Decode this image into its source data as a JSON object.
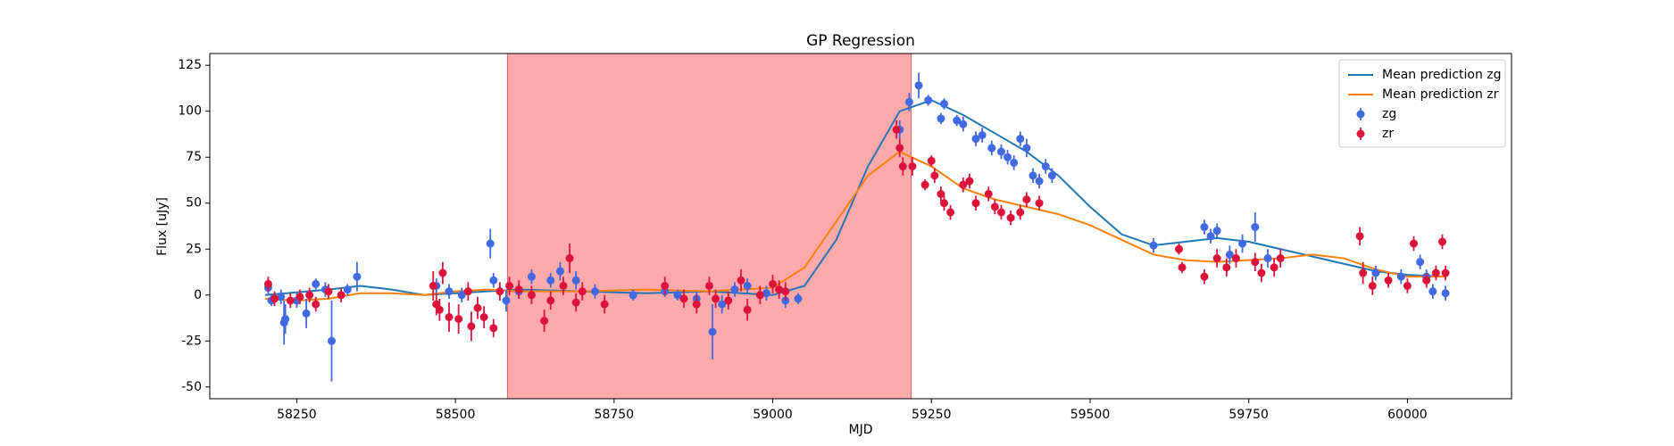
{
  "chart_data": {
    "type": "scatter",
    "title": "GP Regression",
    "x_label": "MJD",
    "y_label": "Flux [uJy]",
    "xlim": [
      58113,
      60164
    ],
    "ylim": [
      -56.4,
      131.4
    ],
    "xticks": [
      58250,
      58500,
      58750,
      59000,
      59250,
      59500,
      59750,
      60000
    ],
    "yticks": [
      -50,
      -25,
      0,
      25,
      50,
      75,
      100,
      125
    ],
    "legend": "upper right",
    "shaded_span": {
      "xlim": [
        58582,
        59218
      ],
      "color": "#ffaaaa"
    },
    "series": [
      {
        "name": "Mean prediction zg",
        "type": "line",
        "color": "#1f77b4",
        "x": [
          58200,
          58300,
          58350,
          58400,
          58450,
          58500,
          58550,
          58600,
          58700,
          58800,
          58900,
          59000,
          59050,
          59100,
          59150,
          59200,
          59250,
          59300,
          59350,
          59400,
          59450,
          59500,
          59550,
          59600,
          59650,
          59700,
          59750,
          59800,
          59850,
          59900,
          59950,
          60000,
          60060
        ],
        "values": [
          0,
          3,
          5,
          3,
          0,
          1,
          2,
          3,
          2,
          1,
          2,
          0,
          5,
          30,
          70,
          100,
          106,
          98,
          88,
          78,
          65,
          48,
          33,
          27,
          29,
          31,
          29,
          25,
          21,
          17,
          13,
          11,
          10
        ]
      },
      {
        "name": "Mean prediction zr",
        "type": "line",
        "color": "#ff7f0e",
        "x": [
          58200,
          58250,
          58300,
          58350,
          58400,
          58450,
          58500,
          58550,
          58600,
          58700,
          58800,
          58900,
          59000,
          59050,
          59100,
          59150,
          59200,
          59250,
          59300,
          59350,
          59400,
          59450,
          59500,
          59550,
          59600,
          59650,
          59700,
          59750,
          59800,
          59850,
          59900,
          59950,
          60000,
          60060
        ],
        "values": [
          -2,
          -3,
          -2,
          1,
          1,
          0,
          2,
          3,
          2,
          2,
          3,
          2,
          4,
          15,
          40,
          65,
          78,
          70,
          58,
          52,
          48,
          44,
          38,
          30,
          22,
          19,
          18,
          19,
          20,
          22,
          20,
          14,
          10,
          10
        ]
      },
      {
        "name": "zg",
        "type": "errorbar",
        "color": "#4169e1",
        "x": [
          58205,
          58210,
          58225,
          58230,
          58232,
          58250,
          58265,
          58280,
          58295,
          58305,
          58330,
          58345,
          58470,
          58490,
          58510,
          58555,
          58560,
          58580,
          58600,
          58620,
          58650,
          58665,
          58690,
          58720,
          58780,
          58830,
          58850,
          58880,
          58905,
          58920,
          58940,
          58960,
          58990,
          59020,
          59040,
          59200,
          59215,
          59230,
          59245,
          59265,
          59270,
          59290,
          59300,
          59320,
          59330,
          59345,
          59360,
          59370,
          59380,
          59390,
          59400,
          59410,
          59420,
          59430,
          59440,
          59600,
          59680,
          59690,
          59700,
          59720,
          59740,
          59760,
          59780,
          59950,
          59990,
          60020,
          60030,
          60040,
          60060
        ],
        "values": [
          4,
          -3,
          -1,
          -15,
          -13,
          -3,
          -10,
          6,
          3,
          -25,
          3,
          10,
          5,
          2,
          0,
          28,
          8,
          -3,
          2,
          10,
          8,
          13,
          8,
          2,
          0,
          2,
          0,
          -2,
          -20,
          -5,
          3,
          5,
          1,
          -3,
          -2,
          90,
          105,
          114,
          106,
          96,
          104,
          95,
          93,
          85,
          87,
          80,
          78,
          75,
          72,
          85,
          80,
          65,
          62,
          70,
          65,
          27,
          37,
          32,
          35,
          22,
          28,
          37,
          20,
          12,
          10,
          18,
          10,
          2,
          1
        ],
        "errors": [
          4,
          3,
          4,
          12,
          8,
          4,
          8,
          3,
          4,
          22,
          3,
          8,
          4,
          4,
          4,
          8,
          4,
          6,
          4,
          4,
          4,
          5,
          5,
          4,
          3,
          3,
          3,
          4,
          15,
          5,
          4,
          4,
          4,
          4,
          3,
          5,
          5,
          7,
          3,
          3,
          3,
          3,
          4,
          4,
          4,
          4,
          4,
          4,
          4,
          4,
          5,
          4,
          4,
          4,
          4,
          4,
          4,
          4,
          4,
          5,
          5,
          8,
          5,
          4,
          4,
          4,
          4,
          4,
          4
        ]
      },
      {
        "name": "zr",
        "type": "errorbar",
        "color": "#dc143c",
        "x": [
          58205,
          58215,
          58240,
          58255,
          58270,
          58280,
          58300,
          58320,
          58465,
          58470,
          58475,
          58480,
          58490,
          58505,
          58520,
          58525,
          58535,
          58545,
          58560,
          58570,
          58585,
          58600,
          58620,
          58640,
          58650,
          58670,
          58680,
          58690,
          58700,
          58735,
          58830,
          58860,
          58880,
          58900,
          58910,
          58930,
          58950,
          58960,
          58980,
          59000,
          59010,
          59020,
          59195,
          59200,
          59205,
          59220,
          59240,
          59250,
          59255,
          59265,
          59270,
          59280,
          59300,
          59310,
          59320,
          59340,
          59350,
          59360,
          59375,
          59390,
          59400,
          59420,
          59640,
          59645,
          59680,
          59700,
          59715,
          59730,
          59760,
          59770,
          59790,
          59800,
          59925,
          59930,
          59945,
          59970,
          60000,
          60010,
          60030,
          60045,
          60055,
          60060
        ],
        "values": [
          6,
          -2,
          -3,
          -1,
          0,
          -5,
          2,
          0,
          5,
          -5,
          -8,
          12,
          -12,
          -13,
          2,
          -17,
          -7,
          -12,
          -18,
          2,
          5,
          3,
          0,
          -14,
          -3,
          5,
          20,
          -4,
          2,
          -5,
          5,
          -2,
          -5,
          5,
          -2,
          -3,
          8,
          -8,
          0,
          6,
          3,
          2,
          90,
          80,
          70,
          70,
          60,
          73,
          65,
          55,
          50,
          45,
          60,
          62,
          50,
          55,
          48,
          45,
          42,
          45,
          52,
          50,
          25,
          15,
          10,
          20,
          15,
          20,
          18,
          12,
          15,
          20,
          32,
          12,
          5,
          8,
          5,
          28,
          8,
          12,
          29,
          12
        ],
        "errors": [
          4,
          4,
          4,
          4,
          4,
          4,
          4,
          4,
          8,
          6,
          6,
          6,
          8,
          8,
          5,
          8,
          6,
          6,
          5,
          5,
          5,
          5,
          5,
          6,
          5,
          5,
          8,
          5,
          5,
          5,
          5,
          5,
          5,
          5,
          5,
          5,
          6,
          6,
          5,
          5,
          5,
          5,
          5,
          5,
          5,
          5,
          3,
          3,
          4,
          4,
          4,
          4,
          4,
          4,
          4,
          4,
          4,
          4,
          4,
          4,
          4,
          4,
          3,
          3,
          4,
          5,
          5,
          5,
          5,
          5,
          5,
          5,
          5,
          6,
          5,
          4,
          4,
          4,
          4,
          4,
          4,
          4
        ]
      }
    ]
  }
}
